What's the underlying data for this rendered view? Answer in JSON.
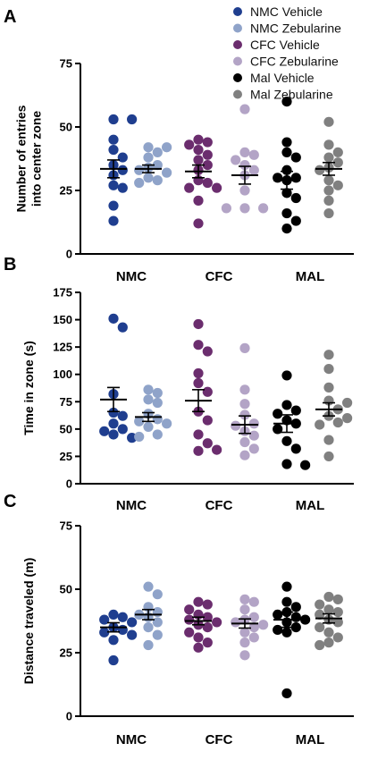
{
  "legend": [
    {
      "name": "NMC Vehicle",
      "color": "#1f3e8f"
    },
    {
      "name": "NMC Zebularine",
      "color": "#8fa3c9"
    },
    {
      "name": "CFC Vehicle",
      "color": "#6b2d6e"
    },
    {
      "name": "CFC Zebularine",
      "color": "#b3a4c6"
    },
    {
      "name": "Mal Vehicle",
      "color": "#000000"
    },
    {
      "name": "Mal Zebularine",
      "color": "#808080"
    }
  ],
  "chart_data": [
    {
      "type": "scatter",
      "panel": "A",
      "ylabel": "Number of entries\ninto center zone",
      "ylim": [
        0,
        75
      ],
      "yticks": [
        0,
        25,
        50,
        75
      ],
      "groups": [
        "NMC",
        "CFC",
        "MAL"
      ],
      "series": [
        {
          "name": "NMC Vehicle",
          "values": [
            53,
            53,
            45,
            41,
            38,
            35,
            33,
            31,
            27,
            26,
            19,
            13
          ],
          "mean": 33.5,
          "sem": 3.5
        },
        {
          "name": "NMC Zebularine",
          "values": [
            42,
            42,
            40,
            38,
            35,
            34,
            33,
            32,
            30,
            29,
            28
          ],
          "mean": 33.5,
          "sem": 1.5
        },
        {
          "name": "CFC Vehicle",
          "values": [
            45,
            44,
            43,
            41,
            39,
            37,
            35,
            33,
            29,
            28,
            26,
            26,
            21,
            12
          ],
          "mean": 32.5,
          "sem": 2.5
        },
        {
          "name": "CFC Zebularine",
          "values": [
            57,
            40,
            39,
            37,
            35,
            33,
            31,
            25,
            18,
            18,
            18
          ],
          "mean": 31,
          "sem": 3.5
        },
        {
          "name": "Mal Vehicle",
          "values": [
            60,
            44,
            40,
            38,
            33,
            30,
            30,
            29,
            24,
            22,
            16,
            13,
            10
          ],
          "mean": 29,
          "sem": 3.5
        },
        {
          "name": "Mal Zebularine",
          "values": [
            52,
            43,
            40,
            38,
            36,
            34,
            33,
            29,
            27,
            25,
            21,
            16
          ],
          "mean": 33.5,
          "sem": 2.5
        }
      ]
    },
    {
      "type": "scatter",
      "panel": "B",
      "ylabel": "Time in zone (s)",
      "ylim": [
        0,
        175
      ],
      "yticks": [
        0,
        25,
        50,
        75,
        100,
        125,
        150,
        175
      ],
      "groups": [
        "NMC",
        "CFC",
        "MAL"
      ],
      "series": [
        {
          "name": "NMC Vehicle",
          "values": [
            151,
            143,
            82,
            65,
            62,
            55,
            50,
            48,
            45,
            42
          ],
          "mean": 77,
          "sem": 11
        },
        {
          "name": "NMC Zebularine",
          "values": [
            86,
            83,
            77,
            74,
            64,
            59,
            57,
            55,
            52,
            45,
            43
          ],
          "mean": 61,
          "sem": 4
        },
        {
          "name": "CFC Vehicle",
          "values": [
            146,
            127,
            121,
            101,
            92,
            84,
            66,
            58,
            45,
            37,
            30,
            31
          ],
          "mean": 76,
          "sem": 10
        },
        {
          "name": "CFC Zebularine",
          "values": [
            124,
            86,
            73,
            63,
            55,
            53,
            48,
            44,
            38,
            32,
            26
          ],
          "mean": 54,
          "sem": 8
        },
        {
          "name": "Mal Vehicle",
          "values": [
            99,
            72,
            67,
            64,
            58,
            55,
            50,
            39,
            32,
            18,
            17
          ],
          "mean": 55,
          "sem": 8
        },
        {
          "name": "Mal Zebularine",
          "values": [
            118,
            105,
            88,
            76,
            74,
            68,
            62,
            60,
            56,
            54,
            40,
            25
          ],
          "mean": 68,
          "sem": 6
        }
      ]
    },
    {
      "type": "scatter",
      "panel": "C",
      "ylabel": "Distance traveled  (m)",
      "ylim": [
        0,
        75
      ],
      "yticks": [
        0,
        25,
        50,
        75
      ],
      "groups": [
        "NMC",
        "CFC",
        "MAL"
      ],
      "series": [
        {
          "name": "NMC Vehicle",
          "values": [
            40,
            39,
            38,
            37,
            35,
            34,
            33,
            32,
            30,
            22
          ],
          "mean": 35,
          "sem": 1.8
        },
        {
          "name": "NMC Zebularine",
          "values": [
            51,
            48,
            43,
            41,
            40,
            39,
            37,
            35,
            32,
            28
          ],
          "mean": 40,
          "sem": 2
        },
        {
          "name": "CFC Vehicle",
          "values": [
            45,
            44,
            42,
            40,
            39,
            38,
            37,
            36,
            35,
            33,
            31,
            29,
            27
          ],
          "mean": 37.5,
          "sem": 1.5
        },
        {
          "name": "CFC Zebularine",
          "values": [
            46,
            45,
            42,
            39,
            38,
            37,
            36,
            35,
            33,
            31,
            29,
            24
          ],
          "mean": 36.5,
          "sem": 1.8
        },
        {
          "name": "Mal Vehicle",
          "values": [
            51,
            45,
            43,
            41,
            40,
            39,
            38,
            37,
            35,
            34,
            33,
            9
          ],
          "mean": 38,
          "sem": 3
        },
        {
          "name": "Mal Zebularine",
          "values": [
            47,
            46,
            44,
            42,
            41,
            40,
            38,
            37,
            35,
            33,
            31,
            29,
            28
          ],
          "mean": 38.5,
          "sem": 1.8
        }
      ]
    }
  ]
}
